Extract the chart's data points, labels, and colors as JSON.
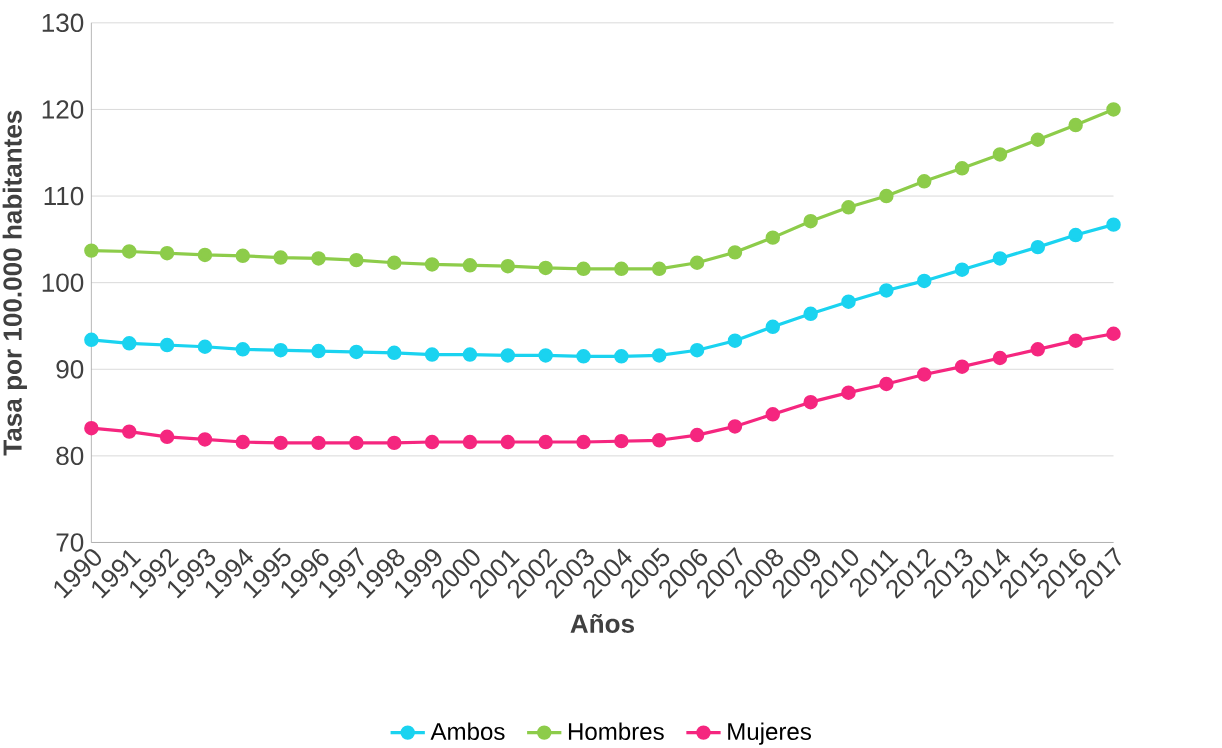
{
  "chart_data": {
    "type": "line",
    "xlabel": "Años",
    "ylabel": "Tasa por 100.000 habitantes",
    "categories": [
      "1990",
      "1991",
      "1992",
      "1993",
      "1994",
      "1995",
      "1996",
      "1997",
      "1998",
      "1999",
      "2000",
      "2001",
      "2002",
      "2003",
      "2004",
      "2005",
      "2006",
      "2007",
      "2008",
      "2009",
      "2010",
      "2011",
      "2012",
      "2013",
      "2014",
      "2015",
      "2016",
      "2017"
    ],
    "series": [
      {
        "name": "Ambos",
        "color": "#1ad3f0",
        "values": [
          93.4,
          93.0,
          92.8,
          92.6,
          92.3,
          92.2,
          92.1,
          92.0,
          91.9,
          91.7,
          91.7,
          91.6,
          91.6,
          91.5,
          91.5,
          91.6,
          92.2,
          93.3,
          94.9,
          96.4,
          97.8,
          99.1,
          100.2,
          101.5,
          102.8,
          104.1,
          105.5,
          106.7
        ]
      },
      {
        "name": "Hombres",
        "color": "#8dcc4a",
        "values": [
          103.7,
          103.6,
          103.4,
          103.2,
          103.1,
          102.9,
          102.8,
          102.6,
          102.3,
          102.1,
          102.0,
          101.9,
          101.7,
          101.6,
          101.6,
          101.6,
          102.3,
          103.5,
          105.2,
          107.1,
          108.7,
          110.0,
          111.7,
          113.2,
          114.8,
          116.5,
          118.2,
          120.0
        ]
      },
      {
        "name": "Mujeres",
        "color": "#f5267f",
        "values": [
          83.2,
          82.8,
          82.2,
          81.9,
          81.6,
          81.5,
          81.5,
          81.5,
          81.5,
          81.6,
          81.6,
          81.6,
          81.6,
          81.6,
          81.7,
          81.8,
          82.4,
          83.4,
          84.8,
          86.2,
          87.3,
          88.3,
          89.4,
          90.3,
          91.3,
          92.3,
          93.3,
          94.1
        ]
      }
    ],
    "ylim": [
      70,
      130
    ],
    "yticks": [
      70,
      80,
      90,
      100,
      110,
      120,
      130
    ],
    "grid": "y",
    "legend": "bottom",
    "marker": "circle",
    "line_style": "solid"
  }
}
